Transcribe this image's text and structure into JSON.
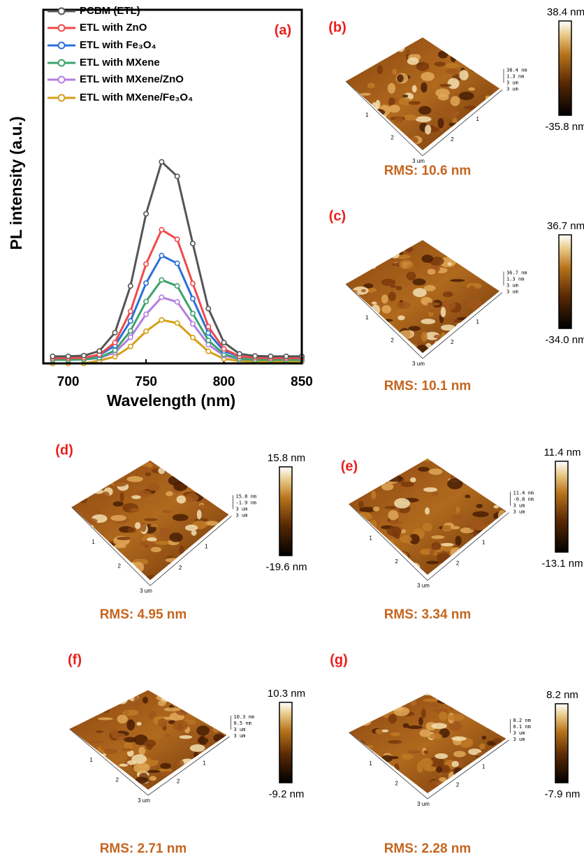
{
  "chart_data": {
    "type": "line",
    "panel_label": "(a)",
    "xlabel": "Wavelength (nm)",
    "ylabel": "PL intensity (a.u.)",
    "x": [
      690,
      700,
      710,
      720,
      730,
      740,
      750,
      760,
      770,
      780,
      790,
      800,
      810,
      820,
      830,
      840,
      850
    ],
    "xlim": [
      684,
      850
    ],
    "xticks": [
      700,
      750,
      800,
      850
    ],
    "ylim": [
      0,
      100
    ],
    "series": [
      {
        "name": "PCBM (ETL)",
        "color": "#555555",
        "values": [
          2,
          2,
          2.2,
          3.5,
          8.7,
          21.9,
          42.3,
          57,
          52.9,
          33.9,
          15.5,
          5.9,
          2.7,
          2.1,
          2,
          2,
          2
        ]
      },
      {
        "name": "ETL with ZnO",
        "color": "#ef4a4a",
        "values": [
          1.5,
          1.5,
          1.6,
          2.5,
          5.9,
          14.7,
          28.1,
          37.8,
          35.1,
          22.6,
          10.4,
          4.1,
          2,
          1.6,
          1.5,
          1.5,
          1.5
        ]
      },
      {
        "name": "ETL with Fe₃O₄",
        "color": "#2b70d8",
        "values": [
          1.5,
          1.5,
          1.6,
          2.3,
          5,
          12,
          22.7,
          30.5,
          28.3,
          18.3,
          8.6,
          3.5,
          1.9,
          1.6,
          1.5,
          1.5,
          1.5
        ]
      },
      {
        "name": "ETL with MXene",
        "color": "#3ca26c",
        "values": [
          1,
          1,
          1.1,
          1.6,
          3.7,
          9.2,
          17.5,
          23.6,
          21.9,
          14.1,
          6.5,
          2.6,
          1.3,
          1,
          1,
          1,
          1
        ]
      },
      {
        "name": "ETL with MXene/ZnO",
        "color": "#b47ee2",
        "values": [
          1,
          1,
          1.1,
          1.5,
          3.1,
          7.4,
          13.9,
          18.7,
          17.4,
          11.2,
          5.3,
          2.2,
          1.2,
          1,
          1,
          1,
          1
        ]
      },
      {
        "name": "ETL with MXene/Fe₃O₄",
        "color": "#d4a017",
        "values": [
          0,
          0,
          0,
          0.8,
          1.9,
          4.8,
          9.1,
          12.3,
          11.4,
          7.3,
          3.4,
          1.3,
          0.7,
          0.5,
          0.5,
          0.5,
          0.5
        ]
      }
    ]
  },
  "afm_panels": [
    {
      "label": "(b)",
      "rms": "RMS: 10.6 nm",
      "colorbar_max": "38.4 nm",
      "colorbar_min": "-35.8 nm",
      "z_labels": [
        "38.4 nm",
        "1.3 nm",
        "3 um",
        "3 um"
      ],
      "edge_labels": [
        "1",
        "2",
        "3 um",
        "2",
        "1"
      ]
    },
    {
      "label": "(c)",
      "rms": "RMS: 10.1 nm",
      "colorbar_max": "36.7 nm",
      "colorbar_min": "-34.0 nm",
      "z_labels": [
        "36.7 nm",
        "1.3 nm",
        "3 um",
        "3 um"
      ],
      "edge_labels": [
        "1",
        "2",
        "3 um",
        "2",
        "1"
      ]
    },
    {
      "label": "(d)",
      "rms": "RMS: 4.95 nm",
      "colorbar_max": "15.8 nm",
      "colorbar_min": "-19.6 nm",
      "z_labels": [
        "15.8 nm",
        "-1.9 nm",
        "3 um",
        "3 um"
      ],
      "edge_labels": [
        "1",
        "2",
        "3 um",
        "2",
        "1"
      ]
    },
    {
      "label": "(e)",
      "rms": "RMS: 3.34 nm",
      "colorbar_max": "11.4 nm",
      "colorbar_min": "-13.1 nm",
      "z_labels": [
        "11.4 nm",
        "-0.8 nm",
        "3 um",
        "3 um"
      ],
      "edge_labels": [
        "1",
        "2",
        "3 um",
        "2",
        "1"
      ]
    },
    {
      "label": "(f)",
      "rms": "RMS: 2.71 nm",
      "colorbar_max": "10.3 nm",
      "colorbar_min": "-9.2 nm",
      "z_labels": [
        "10.3 nm",
        "0.5 nm",
        "3 um",
        "3 um"
      ],
      "edge_labels": [
        "1",
        "2",
        "3 um",
        "2",
        "1"
      ]
    },
    {
      "label": "(g)",
      "rms": "RMS: 2.28 nm",
      "colorbar_max": "8.2 nm",
      "colorbar_min": "-7.9 nm",
      "z_labels": [
        "8.2 nm",
        "0.1 nm",
        "3 um",
        "3 um"
      ],
      "edge_labels": [
        "1",
        "2",
        "3 um",
        "2",
        "1"
      ]
    }
  ]
}
